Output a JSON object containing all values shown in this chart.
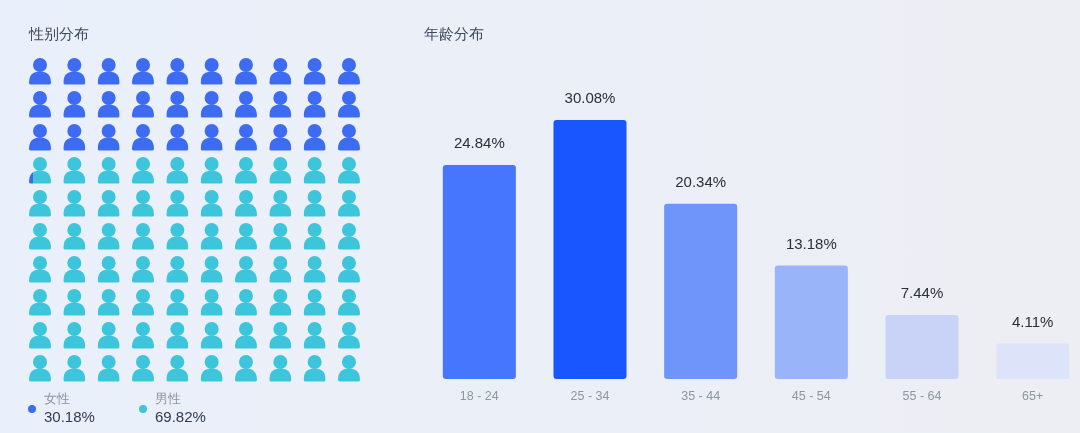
{
  "chart_data": [
    {
      "type": "other",
      "title": "性别分布",
      "categories": [
        "女性",
        "男性"
      ],
      "values": [
        30.18,
        69.82
      ],
      "value_labels": [
        "30.18%",
        "69.82%"
      ],
      "colors": [
        "#3d6cf2",
        "#3dc5dc"
      ]
    },
    {
      "type": "bar",
      "title": "年龄分布",
      "categories": [
        "18 - 24",
        "25 - 34",
        "35 - 44",
        "45 - 54",
        "55 - 64",
        "65+"
      ],
      "values": [
        24.84,
        30.08,
        20.34,
        13.18,
        7.44,
        4.11
      ],
      "value_labels": [
        "24.84%",
        "30.08%",
        "20.34%",
        "13.18%",
        "7.44%",
        "4.11%"
      ],
      "colors": [
        "#4676fe",
        "#1a56ff",
        "#6f95fb",
        "#9ab4fa",
        "#c8d3f7",
        "#dde3f8"
      ]
    }
  ]
}
